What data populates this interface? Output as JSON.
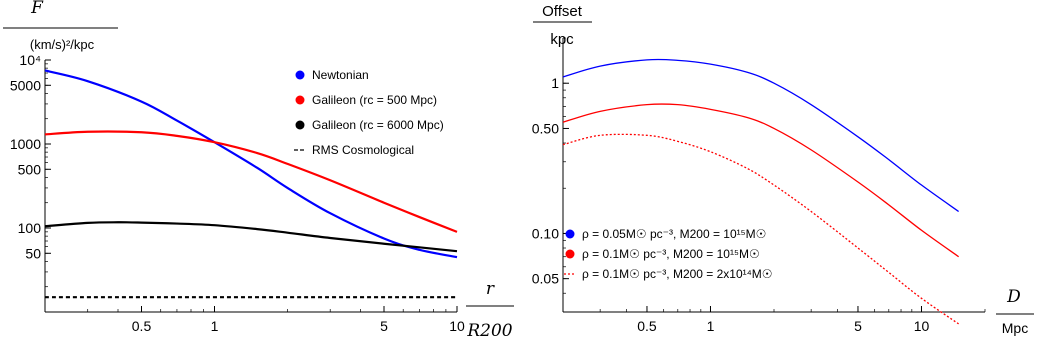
{
  "chart_data": [
    {
      "type": "line",
      "scale": "log-log",
      "ylabel_top": "F",
      "ylabel_bottom": "(km/s)²/kpc",
      "xlabel_top": "r",
      "xlabel_bottom": "R200",
      "xlim": [
        0.2,
        10
      ],
      "ylim": [
        10,
        10000
      ],
      "x_ticks": [
        {
          "v": 0.5,
          "label": "0.5"
        },
        {
          "v": 1,
          "label": "1"
        },
        {
          "v": 5,
          "label": "5"
        },
        {
          "v": 10,
          "label": "10"
        }
      ],
      "y_ticks": [
        {
          "v": 10000,
          "label": "10⁴"
        },
        {
          "v": 5000,
          "label": "5000"
        },
        {
          "v": 1000,
          "label": "1000"
        },
        {
          "v": 500,
          "label": "500"
        },
        {
          "v": 100,
          "label": "100"
        },
        {
          "v": 50,
          "label": "50"
        }
      ],
      "legend_position": "top-right",
      "series": [
        {
          "name": "Newtonian",
          "color": "#0000ff",
          "dash": "none",
          "x": [
            0.2,
            0.3,
            0.5,
            0.7,
            1.0,
            1.5,
            2.0,
            3.0,
            5.0,
            7.0,
            10.0
          ],
          "y": [
            7500,
            5600,
            3200,
            1900,
            1050,
            520,
            300,
            150,
            75,
            55,
            45
          ]
        },
        {
          "name": "Galileon (rc = 500 Mpc)",
          "color": "#ff0000",
          "dash": "none",
          "x": [
            0.2,
            0.3,
            0.5,
            0.7,
            1.0,
            1.5,
            2.0,
            3.0,
            5.0,
            7.0,
            10.0
          ],
          "y": [
            1300,
            1400,
            1380,
            1250,
            1050,
            780,
            580,
            370,
            200,
            135,
            90
          ]
        },
        {
          "name": "Galileon (rc = 6000 Mpc)",
          "color": "#000000",
          "dash": "none",
          "x": [
            0.2,
            0.3,
            0.4,
            0.5,
            0.7,
            1.0,
            1.5,
            2.0,
            3.0,
            5.0,
            10.0
          ],
          "y": [
            105,
            115,
            117,
            116,
            113,
            108,
            97,
            88,
            76,
            65,
            53
          ]
        },
        {
          "name": "RMS Cosmological",
          "color": "#000000",
          "dash": "4,3",
          "x": [
            0.2,
            10.0
          ],
          "y": [
            15,
            15
          ]
        }
      ]
    },
    {
      "type": "line",
      "scale": "log-log",
      "ylabel_top": "Offset",
      "ylabel_bottom": "kpc",
      "xlabel_top": "D",
      "xlabel_bottom": "Mpc",
      "xlim": [
        0.2,
        20
      ],
      "ylim": [
        0.03,
        2
      ],
      "x_ticks": [
        {
          "v": 0.5,
          "label": "0.5"
        },
        {
          "v": 1,
          "label": "1"
        },
        {
          "v": 5,
          "label": "5"
        },
        {
          "v": 10,
          "label": "10"
        }
      ],
      "y_ticks": [
        {
          "v": 1,
          "label": "1"
        },
        {
          "v": 0.5,
          "label": "0.50"
        },
        {
          "v": 0.1,
          "label": "0.10"
        },
        {
          "v": 0.05,
          "label": "0.05"
        }
      ],
      "legend_position": "bottom-left",
      "series": [
        {
          "name": "ρ = 0.05M☉ pc⁻³, M200 = 10¹⁵M☉",
          "color": "#0000ff",
          "dash": "none",
          "x": [
            0.2,
            0.3,
            0.5,
            0.7,
            1.0,
            1.5,
            2.0,
            3.0,
            5.0,
            7.0,
            10.0,
            15.0
          ],
          "y": [
            1.1,
            1.3,
            1.43,
            1.42,
            1.34,
            1.18,
            1.0,
            0.72,
            0.44,
            0.31,
            0.21,
            0.14
          ]
        },
        {
          "name": "ρ = 0.1M☉ pc⁻³, M200 = 10¹⁵M☉",
          "color": "#ff0000",
          "dash": "none",
          "x": [
            0.2,
            0.3,
            0.5,
            0.7,
            1.0,
            1.5,
            2.0,
            3.0,
            5.0,
            7.0,
            10.0,
            15.0
          ],
          "y": [
            0.55,
            0.65,
            0.72,
            0.72,
            0.67,
            0.59,
            0.5,
            0.36,
            0.22,
            0.155,
            0.105,
            0.07
          ]
        },
        {
          "name": "ρ = 0.1M☉ pc⁻³, M200 = 2x10¹⁴M☉",
          "color": "#ff0000",
          "dash": "2,2",
          "x": [
            0.2,
            0.3,
            0.5,
            0.7,
            1.0,
            1.5,
            2.0,
            3.0,
            5.0,
            7.0,
            10.0,
            15.0
          ],
          "y": [
            0.39,
            0.45,
            0.45,
            0.41,
            0.35,
            0.27,
            0.21,
            0.14,
            0.08,
            0.055,
            0.037,
            0.025
          ]
        }
      ]
    }
  ]
}
